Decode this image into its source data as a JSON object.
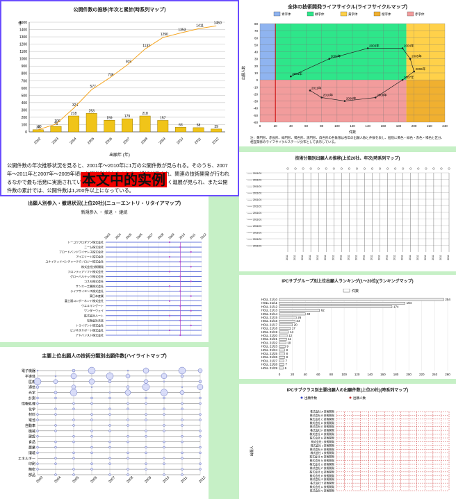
{
  "overlay_text": "本文中的实例",
  "paragraph": "公開件数の年次推移状況を見ると、2001年～2010年に1万の公開件数が見られる。そのうち、2007年～2011年と2007年～2009年頃に公開件数が大きくなり、増加が示され、関連の技術開発が行われるなかで最も活発に実施されている。2006年からの期間において目覚しく進展が見られ、また公開件数の累計では、公開件数は1,200件以上になっている。",
  "panels": {
    "p1": {
      "title": "公開件数の推移(年次と累計(時系列マップ)",
      "xlabel": "出願年 (年)",
      "legend": "公開件数",
      "ylabel": "件"
    },
    "p2": {
      "title": "全体の技術開発ライフサイクル(ライフサイクルマップ)",
      "xlabel": "件数",
      "ylabel": "出願人数",
      "note": "注：黄円形、赤長形、緑円形、褐色形、黒円形、白色形の各象限は各年の出願人数と件数を表し、個別に黄色・緑色・赤色・褐色と区分、相互関係のライフサイクルステージ分布として表示している。"
    },
    "p3": {
      "title": "出願人別参入・撤退状況(上位20社)(ニューエントリ・リタイアマップ)",
      "legend": [
        "新規参入",
        "撤退",
        "継続"
      ]
    },
    "p4": {
      "title": "主要上位出願人の技術分類別出願件数(ハイライトマップ)"
    },
    "p5": {
      "title": "IPCサブグループ別上位出願人ランキング(1～20位)(ランキングマップ)",
      "legend": "件数"
    },
    "p6": {
      "title": "技術分類別出願人の推移(上位20社、年次(時系列マップ)"
    },
    "p7": {
      "title": "IPCサブクラス別主要出願人の出願件数(上位20社)(時系列マップ)",
      "legend": [
        "出願件数",
        "出願人数"
      ],
      "ylabel": "出願人"
    }
  },
  "chart_data": [
    {
      "type": "bar",
      "title": "公開件数の推移(年次と累計(時系列マップ)",
      "categories": [
        "2002",
        "2003",
        "2004",
        "2005",
        "2006",
        "2007",
        "2008",
        "2009",
        "2010",
        "2011",
        "2012"
      ],
      "series": [
        {
          "name": "公開件数",
          "values": [
            30,
            76,
            218,
            253,
            159,
            179,
            218,
            157,
            63,
            58,
            39
          ]
        },
        {
          "name": "累計",
          "values": [
            30,
            106,
            324,
            577,
            736,
            915,
            1133,
            1290,
            1353,
            1411,
            1450
          ]
        }
      ],
      "ylim": [
        0,
        1500
      ]
    },
    {
      "type": "line",
      "title": "全体の技術開発ライフサイクル(ライフサイクルマップ)",
      "x_range": [
        0,
        240
      ],
      "y_range": [
        -60,
        80
      ],
      "labels": [
        "2001年",
        "2002年",
        "2003年",
        "2004年",
        "2005年",
        "2006年",
        "2007年",
        "2008年",
        "2009年",
        "2010年",
        "2011年",
        "2012年"
      ]
    },
    {
      "type": "scatter",
      "title": "出願人別参入・撤退状況(上位20社)",
      "rows": 20
    },
    {
      "type": "bar",
      "title": "IPCサブグループ別上位出願人ランキング(1～20位)",
      "series": [
        {
          "name": "件数",
          "values": [
            254,
            194,
            174,
            62,
            40,
            26,
            24,
            20,
            17,
            14,
            12,
            11,
            10,
            9,
            8,
            8,
            8,
            7,
            7,
            6
          ]
        }
      ]
    },
    {
      "type": "heatmap",
      "title": "技術分類別出願人の推移(上位20社、年次(時系列マップ)",
      "rows": [
        "電子機器",
        "半導体",
        "医療",
        "通信",
        "光学",
        "計測",
        "情報処理",
        "化学",
        "材料",
        "電池",
        "自動車",
        "機械",
        "建設",
        "食品",
        "農業",
        "環境",
        "エネルギー",
        "印刷",
        "精密",
        "部品"
      ],
      "columns": [
        "2003",
        "2004",
        "2005",
        "2006",
        "2007",
        "2008",
        "2009",
        "2010",
        "2011",
        "2012"
      ]
    }
  ]
}
